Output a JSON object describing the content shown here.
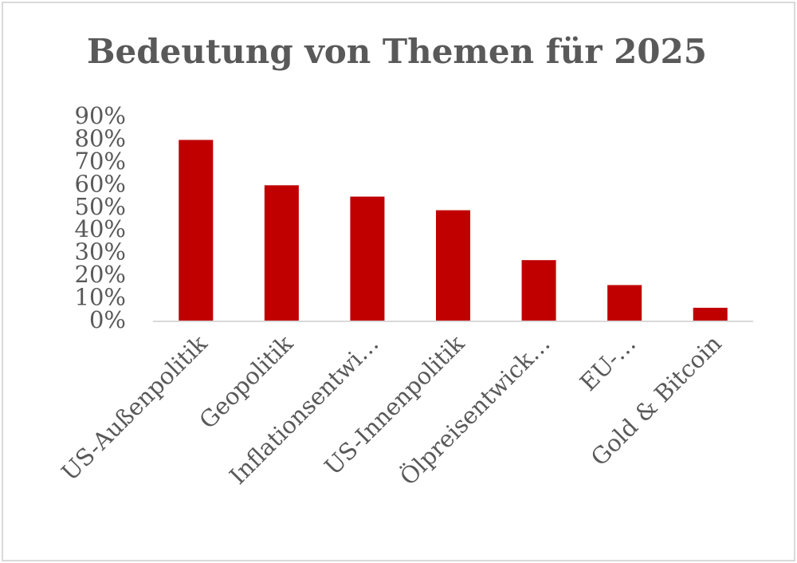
{
  "chart_data": {
    "type": "bar",
    "title": "Bedeutung von Themen für 2025",
    "categories": [
      "US-Außenpolitik",
      "Geopolitik",
      "Inflationsentwi…",
      "US-Innenpolitik",
      "Ölpreisentwick…",
      "EU-…",
      "Gold & Bitcoin"
    ],
    "values": [
      80,
      60,
      55,
      49,
      27,
      16,
      6
    ],
    "color": "#c00000",
    "ylim": [
      0,
      90
    ],
    "yticks": [
      {
        "value": 0,
        "label": "0%"
      },
      {
        "value": 10,
        "label": "10%"
      },
      {
        "value": 20,
        "label": "20%"
      },
      {
        "value": 30,
        "label": "30%"
      },
      {
        "value": 40,
        "label": "40%"
      },
      {
        "value": 50,
        "label": "50%"
      },
      {
        "value": 60,
        "label": "60%"
      },
      {
        "value": 70,
        "label": "70%"
      },
      {
        "value": 80,
        "label": "80%"
      },
      {
        "value": 90,
        "label": "90%"
      }
    ],
    "grid": false
  }
}
